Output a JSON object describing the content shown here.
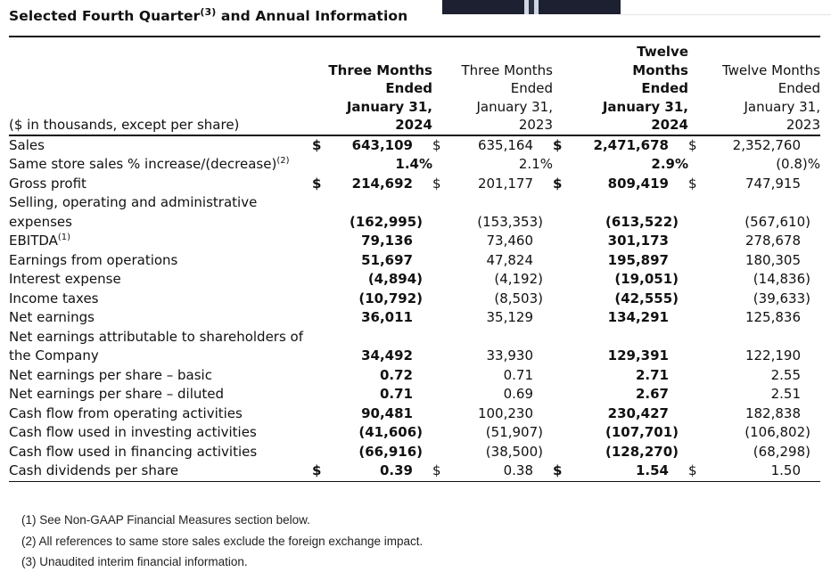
{
  "title": {
    "text": "Selected Fourth Quarter",
    "sup": "(3)",
    "rest": " and Annual Information"
  },
  "header": {
    "label": "($ in thousands, except per share)",
    "columns": [
      {
        "lines": [
          "Three Months",
          "Ended",
          "January 31,",
          "2024"
        ],
        "bold": true
      },
      {
        "lines": [
          "Three Months",
          "Ended",
          "January 31,",
          "2023"
        ],
        "bold": false
      },
      {
        "lines": [
          "Twelve",
          "Months",
          "Ended",
          "January 31,",
          "2024"
        ],
        "bold": true
      },
      {
        "lines": [
          "Twelve Months",
          "Ended",
          "January 31,",
          "2023"
        ],
        "bold": false
      }
    ]
  },
  "rows": [
    {
      "label": "Sales",
      "cells": [
        {
          "cur": "$",
          "value": "643,109"
        },
        {
          "cur": "$",
          "value": "635,164"
        },
        {
          "cur": "$",
          "value": "2,471,678"
        },
        {
          "cur": "$",
          "value": "2,352,760"
        }
      ]
    },
    {
      "label": "Same store sales % increase/(decrease)",
      "sup": "(2)",
      "cells": [
        {
          "value": "1.4%"
        },
        {
          "value": "2.1%"
        },
        {
          "value": "2.9%"
        },
        {
          "value": "(0.8)%"
        }
      ]
    },
    {
      "label": "Gross profit",
      "cells": [
        {
          "cur": "$",
          "value": "214,692"
        },
        {
          "cur": "$",
          "value": "201,177"
        },
        {
          "cur": "$",
          "value": "809,419"
        },
        {
          "cur": "$",
          "value": "747,915"
        }
      ]
    },
    {
      "label": "Selling, operating and administrative expenses",
      "cells": [
        {
          "value": "(162,995)"
        },
        {
          "value": "(153,353)"
        },
        {
          "value": "(613,522)"
        },
        {
          "value": "(567,610)"
        }
      ]
    },
    {
      "label": "EBITDA",
      "sup": "(1)",
      "cells": [
        {
          "value": "79,136"
        },
        {
          "value": "73,460"
        },
        {
          "value": "301,173"
        },
        {
          "value": "278,678"
        }
      ]
    },
    {
      "label": "Earnings from operations",
      "cells": [
        {
          "value": "51,697"
        },
        {
          "value": "47,824"
        },
        {
          "value": "195,897"
        },
        {
          "value": "180,305"
        }
      ]
    },
    {
      "label": "Interest expense",
      "cells": [
        {
          "value": "(4,894)"
        },
        {
          "value": "(4,192)"
        },
        {
          "value": "(19,051)"
        },
        {
          "value": "(14,836)"
        }
      ]
    },
    {
      "label": "Income taxes",
      "cells": [
        {
          "value": "(10,792)"
        },
        {
          "value": "(8,503)"
        },
        {
          "value": "(42,555)"
        },
        {
          "value": "(39,633)"
        }
      ]
    },
    {
      "label": "Net earnings",
      "cells": [
        {
          "value": "36,011"
        },
        {
          "value": "35,129"
        },
        {
          "value": "134,291"
        },
        {
          "value": "125,836"
        }
      ]
    },
    {
      "label": "Net earnings attributable to shareholders of the Company",
      "cells": [
        {
          "value": "34,492"
        },
        {
          "value": "33,930"
        },
        {
          "value": "129,391"
        },
        {
          "value": "122,190"
        }
      ]
    },
    {
      "label": "Net earnings per share – basic",
      "cells": [
        {
          "value": "0.72"
        },
        {
          "value": "0.71"
        },
        {
          "value": "2.71"
        },
        {
          "value": "2.55"
        }
      ]
    },
    {
      "label": "Net earnings per share – diluted",
      "cells": [
        {
          "value": "0.71"
        },
        {
          "value": "0.69"
        },
        {
          "value": "2.67"
        },
        {
          "value": "2.51"
        }
      ]
    },
    {
      "label": "Cash flow from operating activities",
      "cells": [
        {
          "value": "90,481"
        },
        {
          "value": "100,230"
        },
        {
          "value": "230,427"
        },
        {
          "value": "182,838"
        }
      ]
    },
    {
      "label": "Cash flow used in investing activities",
      "cells": [
        {
          "value": "(41,606)"
        },
        {
          "value": "(51,907)"
        },
        {
          "value": "(107,701)"
        },
        {
          "value": "(106,802)"
        }
      ]
    },
    {
      "label": "Cash flow used in financing activities",
      "cells": [
        {
          "value": "(66,916)"
        },
        {
          "value": "(38,500)"
        },
        {
          "value": "(128,270)"
        },
        {
          "value": "(68,298)"
        }
      ]
    },
    {
      "label": "Cash dividends per share",
      "cells": [
        {
          "cur": "$",
          "value": "0.39"
        },
        {
          "cur": "$",
          "value": "0.38"
        },
        {
          "cur": "$",
          "value": "1.54"
        },
        {
          "cur": "$",
          "value": "1.50"
        }
      ]
    }
  ],
  "notes": [
    "(1) See Non-GAAP Financial Measures section below.",
    "(2) All references to same store sales exclude the foreign exchange impact.",
    "(3) Unaudited interim financial information."
  ]
}
